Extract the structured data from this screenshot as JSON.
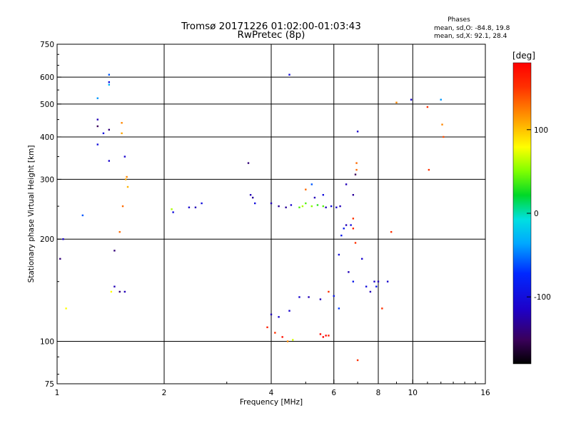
{
  "chart_data": {
    "type": "scatter",
    "title": "Tromsø 20171226 01:02:00-01:03:43",
    "subtitle": "RwPretec (8p)",
    "xlabel": "Frequency [MHz]",
    "ylabel": "Stationary phase Virtual Height [km]",
    "x_scale": "log",
    "y_scale": "log",
    "xlim": [
      1,
      16
    ],
    "ylim": [
      75,
      750
    ],
    "x_ticks": [
      1,
      2,
      4,
      6,
      8,
      10,
      16
    ],
    "y_ticks": [
      75,
      100,
      200,
      300,
      400,
      500,
      600,
      750
    ],
    "x_gridlines": [
      2,
      4,
      6,
      8,
      10
    ],
    "y_gridlines": [
      100,
      200,
      300,
      400,
      500,
      600
    ],
    "grid": true,
    "info": {
      "heading": "Phases",
      "line1": "mean, sd,O: -84.8, 19.8",
      "line2": "mean, sd,X:  92.1, 28.4"
    },
    "colorbar": {
      "label": "[deg]",
      "range": [
        -180,
        180
      ],
      "ticks": [
        100,
        0,
        -100
      ]
    },
    "series": [
      {
        "color_scale": "phase",
        "points": [
          [
            1.02,
            175,
            -140
          ],
          [
            1.04,
            200,
            -110
          ],
          [
            1.06,
            125,
            80
          ],
          [
            1.18,
            235,
            -60
          ],
          [
            1.3,
            520,
            -40
          ],
          [
            1.3,
            450,
            -120
          ],
          [
            1.3,
            430,
            -150
          ],
          [
            1.3,
            380,
            -100
          ],
          [
            1.35,
            410,
            -100
          ],
          [
            1.4,
            610,
            -60
          ],
          [
            1.4,
            580,
            -100
          ],
          [
            1.4,
            570,
            -30
          ],
          [
            1.4,
            420,
            -140
          ],
          [
            1.4,
            340,
            -110
          ],
          [
            1.45,
            185,
            -140
          ],
          [
            1.52,
            440,
            120
          ],
          [
            1.52,
            410,
            110
          ],
          [
            1.53,
            250,
            130
          ],
          [
            1.55,
            350,
            -110
          ],
          [
            1.56,
            300,
            110
          ],
          [
            1.57,
            305,
            120
          ],
          [
            1.58,
            285,
            105
          ],
          [
            1.5,
            210,
            130
          ],
          [
            1.5,
            140,
            -140
          ],
          [
            1.55,
            140,
            -120
          ],
          [
            1.42,
            140,
            80
          ],
          [
            1.45,
            145,
            -120
          ],
          [
            2.1,
            245,
            60
          ],
          [
            2.12,
            240,
            -100
          ],
          [
            2.35,
            248,
            -110
          ],
          [
            2.45,
            248,
            -120
          ],
          [
            2.55,
            255,
            -100
          ],
          [
            3.45,
            335,
            -140
          ],
          [
            3.5,
            270,
            -120
          ],
          [
            3.55,
            265,
            -130
          ],
          [
            3.6,
            255,
            -100
          ],
          [
            4.5,
            610,
            -100
          ],
          [
            4.0,
            255,
            -120
          ],
          [
            4.2,
            250,
            -130
          ],
          [
            4.4,
            248,
            -130
          ],
          [
            4.55,
            252,
            -110
          ],
          [
            4.8,
            248,
            40
          ],
          [
            4.9,
            250,
            60
          ],
          [
            5.0,
            255,
            40
          ],
          [
            5.2,
            250,
            50
          ],
          [
            5.4,
            252,
            30
          ],
          [
            5.6,
            250,
            40
          ],
          [
            5.7,
            248,
            -120
          ],
          [
            5.9,
            250,
            -100
          ],
          [
            6.1,
            248,
            -110
          ],
          [
            6.25,
            250,
            -120
          ],
          [
            5.0,
            280,
            130
          ],
          [
            5.2,
            290,
            -60
          ],
          [
            5.3,
            265,
            -120
          ],
          [
            5.6,
            270,
            -100
          ],
          [
            6.5,
            290,
            -120
          ],
          [
            6.8,
            270,
            -130
          ],
          [
            6.9,
            310,
            -150
          ],
          [
            6.95,
            320,
            130
          ],
          [
            6.95,
            335,
            130
          ],
          [
            7.0,
            415,
            -110
          ],
          [
            6.8,
            230,
            150
          ],
          [
            6.7,
            220,
            -100
          ],
          [
            6.5,
            220,
            -120
          ],
          [
            6.4,
            215,
            -90
          ],
          [
            6.8,
            215,
            160
          ],
          [
            6.9,
            195,
            150
          ],
          [
            6.3,
            205,
            -90
          ],
          [
            6.2,
            180,
            -100
          ],
          [
            6.6,
            160,
            -120
          ],
          [
            6.8,
            150,
            -90
          ],
          [
            7.2,
            175,
            -110
          ],
          [
            7.4,
            145,
            -100
          ],
          [
            7.6,
            140,
            -120
          ],
          [
            7.8,
            150,
            -110
          ],
          [
            8.0,
            150,
            -120
          ],
          [
            7.9,
            145,
            -90
          ],
          [
            8.2,
            125,
            150
          ],
          [
            8.5,
            150,
            -110
          ],
          [
            8.7,
            210,
            150
          ],
          [
            9.0,
            505,
            120
          ],
          [
            9.9,
            515,
            -110
          ],
          [
            11.0,
            490,
            150
          ],
          [
            11.1,
            320,
            150
          ],
          [
            12.0,
            515,
            -40
          ],
          [
            12.1,
            435,
            120
          ],
          [
            12.2,
            400,
            140
          ],
          [
            3.9,
            110,
            160
          ],
          [
            4.1,
            106,
            150
          ],
          [
            4.3,
            103,
            170
          ],
          [
            4.45,
            100,
            120
          ],
          [
            4.6,
            101,
            70
          ],
          [
            5.5,
            105,
            175
          ],
          [
            5.6,
            103,
            180
          ],
          [
            5.7,
            104,
            175
          ],
          [
            5.8,
            104,
            160
          ],
          [
            7.0,
            88,
            150
          ],
          [
            4.0,
            120,
            -120
          ],
          [
            4.2,
            118,
            -110
          ],
          [
            4.5,
            123,
            -110
          ],
          [
            4.8,
            135,
            -110
          ],
          [
            5.1,
            135,
            -120
          ],
          [
            5.5,
            133,
            -120
          ],
          [
            5.8,
            140,
            150
          ],
          [
            6.0,
            136,
            -90
          ],
          [
            6.2,
            125,
            -70
          ]
        ]
      }
    ]
  }
}
